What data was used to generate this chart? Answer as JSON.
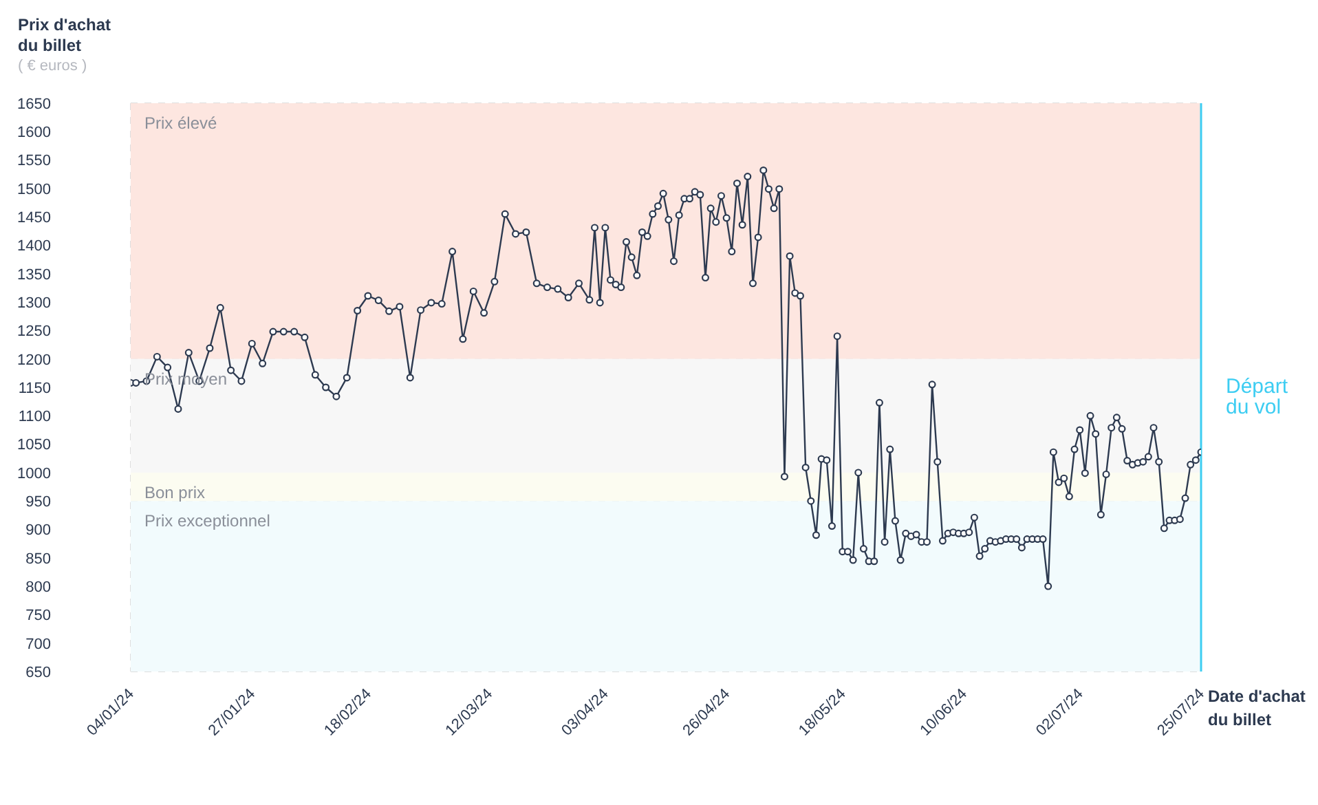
{
  "chart_data": {
    "type": "line",
    "ylabel": "Prix d'achat du billet",
    "xlabel": "Date d'achat du billet",
    "annotations": [
      "( € euros )"
    ],
    "x": [
      "2024-01-04",
      "2024-01-05",
      "2024-01-07",
      "2024-01-09",
      "2024-01-11",
      "2024-01-13",
      "2024-01-15",
      "2024-01-17",
      "2024-01-19",
      "2024-01-21",
      "2024-01-23",
      "2024-01-25",
      "2024-01-27",
      "2024-01-29",
      "2024-01-31",
      "2024-02-02",
      "2024-02-04",
      "2024-02-06",
      "2024-02-08",
      "2024-02-10",
      "2024-02-12",
      "2024-02-14",
      "2024-02-16",
      "2024-02-18",
      "2024-02-20",
      "2024-02-22",
      "2024-02-24",
      "2024-02-26",
      "2024-02-28",
      "2024-03-01",
      "2024-03-03",
      "2024-03-05",
      "2024-03-07",
      "2024-03-09",
      "2024-03-11",
      "2024-03-13",
      "2024-03-15",
      "2024-03-17",
      "2024-03-19",
      "2024-03-21",
      "2024-03-23",
      "2024-03-25",
      "2024-03-27",
      "2024-03-29",
      "2024-03-31",
      "2024-04-01",
      "2024-04-02",
      "2024-04-03",
      "2024-04-04",
      "2024-04-05",
      "2024-04-06",
      "2024-04-07",
      "2024-04-08",
      "2024-04-09",
      "2024-04-10",
      "2024-04-11",
      "2024-04-12",
      "2024-04-13",
      "2024-04-14",
      "2024-04-15",
      "2024-04-16",
      "2024-04-17",
      "2024-04-18",
      "2024-04-19",
      "2024-04-20",
      "2024-04-21",
      "2024-04-22",
      "2024-04-23",
      "2024-04-24",
      "2024-04-25",
      "2024-04-26",
      "2024-04-27",
      "2024-04-28",
      "2024-04-29",
      "2024-04-30",
      "2024-05-01",
      "2024-05-02",
      "2024-05-03",
      "2024-05-04",
      "2024-05-05",
      "2024-05-06",
      "2024-05-07",
      "2024-05-08",
      "2024-05-09",
      "2024-05-10",
      "2024-05-11",
      "2024-05-12",
      "2024-05-13",
      "2024-05-14",
      "2024-05-15",
      "2024-05-16",
      "2024-05-17",
      "2024-05-18",
      "2024-05-19",
      "2024-05-20",
      "2024-05-21",
      "2024-05-22",
      "2024-05-23",
      "2024-05-24",
      "2024-05-25",
      "2024-05-26",
      "2024-05-27",
      "2024-05-28",
      "2024-05-29",
      "2024-05-30",
      "2024-05-31",
      "2024-06-01",
      "2024-06-02",
      "2024-06-03",
      "2024-06-04",
      "2024-06-05",
      "2024-06-06",
      "2024-06-07",
      "2024-06-08",
      "2024-06-09",
      "2024-06-10",
      "2024-06-11",
      "2024-06-12",
      "2024-06-13",
      "2024-06-14",
      "2024-06-15",
      "2024-06-16",
      "2024-06-17",
      "2024-06-18",
      "2024-06-19",
      "2024-06-20",
      "2024-06-21",
      "2024-06-22",
      "2024-06-23",
      "2024-06-24",
      "2024-06-25",
      "2024-06-26",
      "2024-06-27",
      "2024-06-28",
      "2024-06-29",
      "2024-06-30",
      "2024-07-01",
      "2024-07-02",
      "2024-07-03",
      "2024-07-04",
      "2024-07-05",
      "2024-07-06",
      "2024-07-07",
      "2024-07-08",
      "2024-07-09",
      "2024-07-10",
      "2024-07-11",
      "2024-07-12",
      "2024-07-13",
      "2024-07-14",
      "2024-07-15",
      "2024-07-16",
      "2024-07-17",
      "2024-07-18",
      "2024-07-19",
      "2024-07-20",
      "2024-07-21",
      "2024-07-22",
      "2024-07-23",
      "2024-07-24",
      "2024-07-25"
    ],
    "series": [
      {
        "color": "#2d3a50",
        "values": [
          1158,
          1158,
          1161,
          1204,
          1185,
          1112,
          1211,
          1161,
          1219,
          1290,
          1180,
          1161,
          1227,
          1192,
          1248,
          1248,
          1248,
          1238,
          1172,
          1150,
          1134,
          1167,
          1285,
          1311,
          1303,
          1284,
          1292,
          1167,
          1286,
          1299,
          1297,
          1389,
          1235,
          1319,
          1281,
          1336,
          1455,
          1420,
          1423,
          1333,
          1326,
          1323,
          1308,
          1333,
          1304,
          1431,
          1299,
          1431,
          1339,
          1331,
          1326,
          1406,
          1379,
          1347,
          1423,
          1416,
          1455,
          1469,
          1491,
          1445,
          1372,
          1453,
          1482,
          1482,
          1494,
          1489,
          1343,
          1465,
          1441,
          1487,
          1448,
          1389,
          1509,
          1436,
          1521,
          1333,
          1414,
          1532,
          1499,
          1465,
          1499,
          993,
          1381,
          1316,
          1311,
          1009,
          950,
          890,
          1024,
          1022,
          906,
          1240,
          861,
          861,
          846,
          1000,
          866,
          844,
          844,
          1123,
          878,
          1041,
          915,
          846,
          893,
          888,
          891,
          878,
          878,
          1155,
          1019,
          880,
          893,
          895,
          893,
          893,
          895,
          921,
          853,
          866,
          880,
          878,
          880,
          883,
          883,
          883,
          868,
          883,
          883,
          883,
          883,
          800,
          1036,
          983,
          990,
          958,
          1041,
          1075,
          999,
          1100,
          1068,
          926,
          997,
          1079,
          1097,
          1077,
          1021,
          1014,
          1017,
          1019,
          1028,
          1079,
          1019,
          902,
          916,
          916,
          918,
          955,
          1014,
          1022,
          1036
        ]
      }
    ],
    "xlim": [
      "2024-01-04",
      "2024-07-25"
    ],
    "xticks": [
      {
        "value": "2024-01-04",
        "label": "04/01/24"
      },
      {
        "value": "2024-01-27",
        "label": "27/01/24"
      },
      {
        "value": "2024-02-18",
        "label": "18/02/24"
      },
      {
        "value": "2024-03-12",
        "label": "12/03/24"
      },
      {
        "value": "2024-04-03",
        "label": "03/04/24"
      },
      {
        "value": "2024-04-26",
        "label": "26/04/24"
      },
      {
        "value": "2024-05-18",
        "label": "18/05/24"
      },
      {
        "value": "2024-06-10",
        "label": "10/06/24"
      },
      {
        "value": "2024-07-02",
        "label": "02/07/24"
      },
      {
        "value": "2024-07-25",
        "label": "25/07/24"
      }
    ],
    "ylim": [
      650,
      1650
    ],
    "yticks": [
      650,
      700,
      750,
      800,
      850,
      900,
      950,
      1000,
      1050,
      1100,
      1150,
      1200,
      1250,
      1300,
      1350,
      1400,
      1450,
      1500,
      1550,
      1600,
      1650
    ],
    "bands": [
      {
        "axis": "y",
        "from": 1200,
        "to": 1650,
        "label": "Prix élevé",
        "color": "#fde6e0"
      },
      {
        "axis": "y",
        "from": 1000,
        "to": 1200,
        "label": "Prix moyen",
        "color": "#f7f7f7"
      },
      {
        "axis": "y",
        "from": 950,
        "to": 1000,
        "label": "Bon prix",
        "color": "#fcfcf1"
      },
      {
        "axis": "y",
        "from": 650,
        "to": 950,
        "label": "Prix exceptionnel",
        "color": "#f2fbfd"
      }
    ],
    "ref_lines": [
      {
        "axis": "x",
        "value": "2024-07-25",
        "label": "Départ du vol",
        "color": "#3dcdf2",
        "line_style": "solid"
      }
    ],
    "grid": true,
    "marker": "circle",
    "line_style": "solid"
  }
}
